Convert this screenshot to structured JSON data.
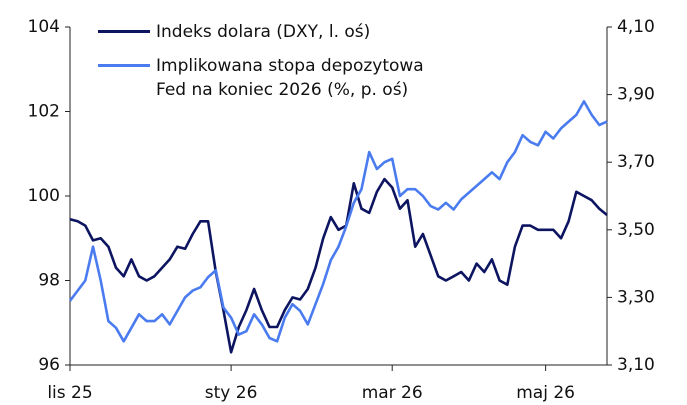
{
  "chart_data": {
    "type": "line",
    "categories": [
      "lis 25",
      null,
      null,
      null,
      null,
      null,
      null,
      null,
      null,
      null,
      null,
      null,
      null,
      null,
      null,
      null,
      null,
      null,
      null,
      null,
      null,
      "sty 26",
      null,
      null,
      null,
      null,
      null,
      null,
      null,
      null,
      null,
      null,
      null,
      null,
      null,
      null,
      null,
      null,
      null,
      null,
      null,
      null,
      "mar 26",
      null,
      null,
      null,
      null,
      null,
      null,
      null,
      null,
      null,
      null,
      null,
      null,
      null,
      null,
      null,
      null,
      null,
      null,
      null,
      "maj 26",
      null,
      null,
      null,
      null,
      null,
      null,
      null,
      null
    ],
    "series": [
      {
        "name": "Indeks dolara (DXY, l. oś)",
        "color": "#0d1561",
        "axis": "y",
        "values": [
          99.45,
          99.4,
          99.3,
          98.95,
          99.0,
          98.8,
          98.3,
          98.1,
          98.5,
          98.1,
          98.0,
          98.1,
          98.3,
          98.5,
          98.8,
          98.75,
          99.1,
          99.4,
          99.4,
          98.2,
          97.3,
          96.3,
          96.9,
          97.3,
          97.8,
          97.3,
          96.9,
          96.9,
          97.3,
          97.6,
          97.55,
          97.8,
          98.3,
          99.0,
          99.5,
          99.2,
          99.3,
          100.3,
          99.7,
          99.6,
          100.1,
          100.4,
          100.2,
          99.7,
          99.9,
          98.8,
          99.1,
          98.6,
          98.1,
          98.0,
          98.1,
          98.2,
          98.0,
          98.4,
          98.2,
          98.5,
          98.0,
          97.9,
          98.8,
          99.3,
          99.3,
          99.2,
          99.2,
          99.2,
          99.0,
          99.4,
          100.1,
          100.0,
          99.9,
          99.7,
          99.55
        ]
      },
      {
        "name": "Implikowana stopa depozytowa Fed na koniec 2026 (%, p. oś)",
        "color": "#4a7cf0",
        "axis": "y2",
        "values": [
          3.29,
          3.32,
          3.35,
          3.45,
          3.35,
          3.23,
          3.21,
          3.17,
          3.21,
          3.25,
          3.23,
          3.23,
          3.25,
          3.22,
          3.26,
          3.3,
          3.32,
          3.33,
          3.36,
          3.38,
          3.27,
          3.24,
          3.19,
          3.2,
          3.25,
          3.22,
          3.18,
          3.17,
          3.24,
          3.28,
          3.26,
          3.22,
          3.28,
          3.34,
          3.41,
          3.45,
          3.51,
          3.58,
          3.62,
          3.73,
          3.68,
          3.7,
          3.71,
          3.6,
          3.62,
          3.62,
          3.6,
          3.57,
          3.56,
          3.58,
          3.56,
          3.59,
          3.61,
          3.63,
          3.65,
          3.67,
          3.65,
          3.7,
          3.73,
          3.78,
          3.76,
          3.75,
          3.79,
          3.77,
          3.8,
          3.82,
          3.84,
          3.88,
          3.84,
          3.81,
          3.82
        ]
      }
    ],
    "ylim": [
      96,
      104
    ],
    "yticks": [
      96,
      98,
      100,
      102,
      104
    ],
    "y2lim": [
      3.1,
      4.1
    ],
    "y2ticks": [
      {
        "value": 3.1,
        "label": "3,10"
      },
      {
        "value": 3.3,
        "label": "3,30"
      },
      {
        "value": 3.5,
        "label": "3,50"
      },
      {
        "value": 3.7,
        "label": "3,70"
      },
      {
        "value": 3.9,
        "label": "3,90"
      },
      {
        "value": 4.1,
        "label": "4,10"
      }
    ],
    "legend": "top"
  }
}
